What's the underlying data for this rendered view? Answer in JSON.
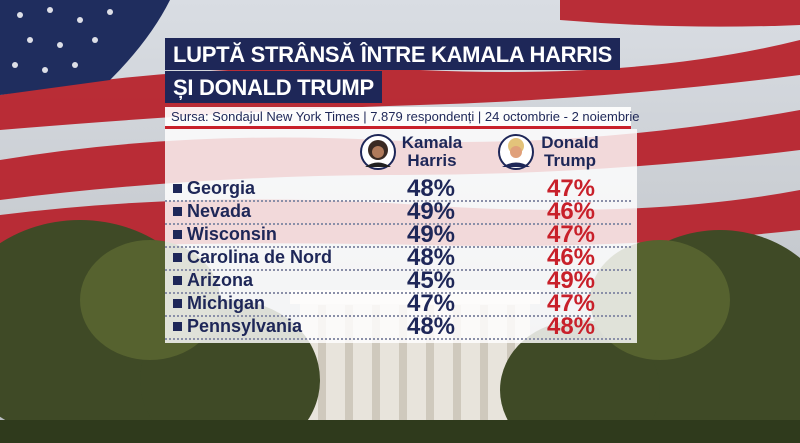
{
  "header": {
    "title_lines": [
      "LUPTĂ STRÂNSĂ ÎNTRE KAMALA HARRIS",
      "ȘI DONALD TRUMP"
    ],
    "source": "Sursa: Sondajul New York Times | 7.879 respondenți | 24 octombrie - 2 noiembrie"
  },
  "table": {
    "columns": [
      [
        "Kamala",
        "Harris"
      ],
      [
        "Donald",
        "Trump"
      ]
    ],
    "rows": [
      [
        "Georgia",
        "48%",
        "47%"
      ],
      [
        "Nevada",
        "49%",
        "46%"
      ],
      [
        "Wisconsin",
        "49%",
        "47%"
      ],
      [
        "Carolina de Nord",
        "48%",
        "46%"
      ],
      [
        "Arizona",
        "45%",
        "49%"
      ],
      [
        "Michigan",
        "47%",
        "47%"
      ],
      [
        "Pennsylvania",
        "48%",
        "48%"
      ]
    ]
  }
}
